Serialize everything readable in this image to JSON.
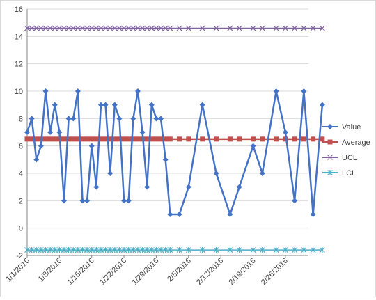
{
  "chart_data": {
    "type": "line",
    "x_type": "date",
    "x_range": [
      "2016-01-01",
      "2016-03-02"
    ],
    "ylim": [
      -2,
      16
    ],
    "y_ticks": [
      -2,
      0,
      2,
      4,
      6,
      8,
      10,
      12,
      14,
      16
    ],
    "x_tick_labels": [
      "1/1/2016",
      "1/8/2016",
      "1/15/2016",
      "1/22/2016",
      "1/29/2016",
      "2/5/2016",
      "2/12/2016",
      "2/19/2016",
      "2/26/2016"
    ],
    "x_tick_dates": [
      "2016-01-01",
      "2016-01-08",
      "2016-01-15",
      "2016-01-22",
      "2016-01-29",
      "2016-02-05",
      "2016-02-12",
      "2016-02-19",
      "2016-02-26"
    ],
    "grid": "horizontal",
    "legend_position": "right",
    "title": "",
    "xlabel": "",
    "ylabel": "",
    "series": [
      {
        "name": "Value",
        "color": "#4472c4",
        "marker": "diamond",
        "points": [
          {
            "x": "2016-01-01",
            "y": 7
          },
          {
            "x": "2016-01-02",
            "y": 8
          },
          {
            "x": "2016-01-03",
            "y": 5
          },
          {
            "x": "2016-01-04",
            "y": 6
          },
          {
            "x": "2016-01-05",
            "y": 10
          },
          {
            "x": "2016-01-06",
            "y": 7
          },
          {
            "x": "2016-01-07",
            "y": 9
          },
          {
            "x": "2016-01-08",
            "y": 7
          },
          {
            "x": "2016-01-09",
            "y": 2
          },
          {
            "x": "2016-01-10",
            "y": 8
          },
          {
            "x": "2016-01-11",
            "y": 8
          },
          {
            "x": "2016-01-12",
            "y": 10
          },
          {
            "x": "2016-01-13",
            "y": 2
          },
          {
            "x": "2016-01-14",
            "y": 2
          },
          {
            "x": "2016-01-15",
            "y": 6
          },
          {
            "x": "2016-01-16",
            "y": 3
          },
          {
            "x": "2016-01-17",
            "y": 9
          },
          {
            "x": "2016-01-18",
            "y": 9
          },
          {
            "x": "2016-01-19",
            "y": 4
          },
          {
            "x": "2016-01-20",
            "y": 9
          },
          {
            "x": "2016-01-21",
            "y": 8
          },
          {
            "x": "2016-01-22",
            "y": 2
          },
          {
            "x": "2016-01-23",
            "y": 2
          },
          {
            "x": "2016-01-24",
            "y": 8
          },
          {
            "x": "2016-01-25",
            "y": 10
          },
          {
            "x": "2016-01-26",
            "y": 7
          },
          {
            "x": "2016-01-27",
            "y": 3
          },
          {
            "x": "2016-01-28",
            "y": 9
          },
          {
            "x": "2016-01-29",
            "y": 8
          },
          {
            "x": "2016-01-30",
            "y": 8
          },
          {
            "x": "2016-01-31",
            "y": 5
          },
          {
            "x": "2016-02-01",
            "y": 1
          },
          {
            "x": "2016-02-03",
            "y": 1
          },
          {
            "x": "2016-02-05",
            "y": 3
          },
          {
            "x": "2016-02-08",
            "y": 9
          },
          {
            "x": "2016-02-11",
            "y": 4
          },
          {
            "x": "2016-02-14",
            "y": 1
          },
          {
            "x": "2016-02-16",
            "y": 3
          },
          {
            "x": "2016-02-19",
            "y": 6
          },
          {
            "x": "2016-02-21",
            "y": 4
          },
          {
            "x": "2016-02-24",
            "y": 10
          },
          {
            "x": "2016-02-26",
            "y": 7
          },
          {
            "x": "2016-02-28",
            "y": 2
          },
          {
            "x": "2016-03-01",
            "y": 10
          },
          {
            "x": "2016-03-03",
            "y": 1
          },
          {
            "x": "2016-03-05",
            "y": 9
          }
        ]
      },
      {
        "name": "Average",
        "color": "#c0504d",
        "marker": "square",
        "value": 6.5
      },
      {
        "name": "UCL",
        "color": "#8064a2",
        "marker": "x",
        "value": 14.6
      },
      {
        "name": "LCL",
        "color": "#4bacc6",
        "marker": "star",
        "value": -1.6
      }
    ]
  }
}
